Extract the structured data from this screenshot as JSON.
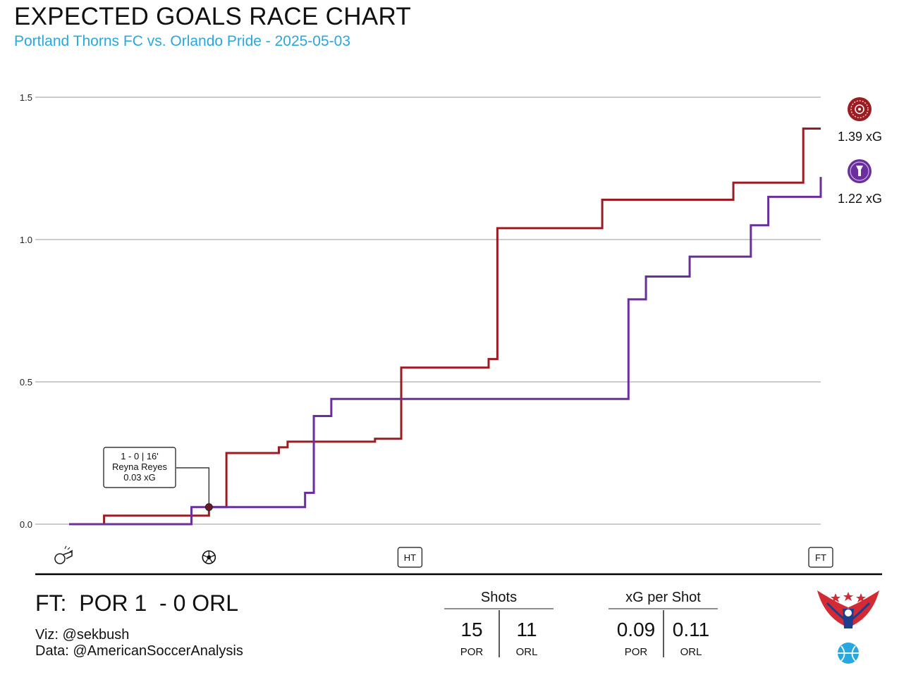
{
  "header": {
    "title": "EXPECTED GOALS RACE CHART",
    "subtitle": "Portland Thorns FC vs. Orlando Pride - 2025-05-03"
  },
  "colors": {
    "por": "#9b1c23",
    "orl": "#6a2f9c",
    "subtitle": "#29a8df",
    "grid": "#cccccc"
  },
  "chart_data": {
    "type": "line",
    "title": "EXPECTED GOALS RACE CHART",
    "subtitle": "Portland Thorns FC vs. Orlando Pride - 2025-05-03",
    "xlabel": "",
    "ylabel": "",
    "step": true,
    "xlim": [
      0,
      97
    ],
    "ylim": [
      0,
      1.5
    ],
    "yticks": [
      0.0,
      0.5,
      1.0,
      1.5
    ],
    "ytick_labels": [
      "0.0",
      "0.5",
      "1.0",
      "1.5"
    ],
    "grid": true,
    "series": [
      {
        "team": "POR",
        "color": "#9b1c23",
        "end_label": "1.39 xG",
        "points": [
          [
            0,
            0
          ],
          [
            4,
            0.03
          ],
          [
            16,
            0.06
          ],
          [
            18,
            0.25
          ],
          [
            24,
            0.27
          ],
          [
            25,
            0.29
          ],
          [
            35,
            0.3
          ],
          [
            38,
            0.55
          ],
          [
            48,
            0.58
          ],
          [
            49,
            1.04
          ],
          [
            61,
            1.14
          ],
          [
            76,
            1.2
          ],
          [
            84,
            1.39
          ],
          [
            86,
            1.39
          ]
        ]
      },
      {
        "team": "ORL",
        "color": "#6a2f9c",
        "end_label": "1.22 xG",
        "points": [
          [
            0,
            0
          ],
          [
            14,
            0.06
          ],
          [
            27,
            0.11
          ],
          [
            28,
            0.38
          ],
          [
            30,
            0.44
          ],
          [
            64,
            0.79
          ],
          [
            66,
            0.87
          ],
          [
            71,
            0.94
          ],
          [
            78,
            1.05
          ],
          [
            80,
            1.15
          ],
          [
            86,
            1.22
          ]
        ]
      }
    ],
    "annotation": {
      "line1": "1 - 0  |  16'",
      "line2": "Reyna Reyes",
      "line3": "0.03 xG",
      "x": 16,
      "y": 0.06
    },
    "timeline": {
      "kickoff_icon": "whistle-icon",
      "goal_icon": "soccer-ball-icon",
      "goal_minute": 16,
      "ht_label": "HT",
      "ht_minute": 39,
      "ft_label": "FT",
      "ft_minute": 86
    }
  },
  "footer": {
    "score": "FT:  POR 1  - 0 ORL",
    "viz": "Viz: @sekbush",
    "data": "Data: @AmericanSoccerAnalysis",
    "shots": {
      "header": "Shots",
      "home": "15",
      "away": "11",
      "home_label": "POR",
      "away_label": "ORL"
    },
    "xg_per_shot": {
      "header": "xG per Shot",
      "home": "0.09",
      "away": "0.11",
      "home_label": "POR",
      "away_label": "ORL"
    },
    "logo_icon": "eagle-soccer-logo-icon"
  },
  "badges": {
    "por": "portland-thorns-crest-icon",
    "orl": "orlando-pride-crest-icon"
  }
}
